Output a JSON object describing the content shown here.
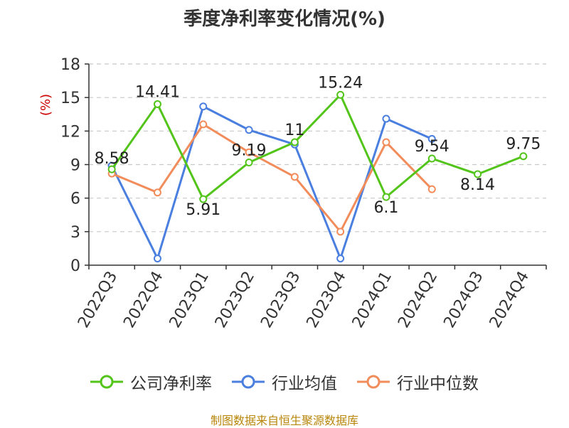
{
  "chart_data": {
    "type": "line",
    "title": "季度净利率变化情况(%)",
    "ylabel": "(%)",
    "source": "制图数据来自恒生聚源数据库",
    "categories": [
      "2022Q3",
      "2022Q4",
      "2023Q1",
      "2023Q2",
      "2023Q3",
      "2023Q4",
      "2024Q1",
      "2024Q2",
      "2024Q3",
      "2024Q4"
    ],
    "ylim": [
      0,
      18
    ],
    "yticks": [
      "0",
      "3",
      "6",
      "9",
      "12",
      "15",
      "18"
    ],
    "grid": true,
    "legend": "bottom",
    "series": [
      {
        "name": "公司净利率",
        "color": "#52c41a",
        "values": [
          8.58,
          14.41,
          5.91,
          9.19,
          11,
          15.24,
          6.1,
          9.54,
          8.14,
          9.75
        ],
        "labels": [
          "8.58",
          "14.41",
          "5.91",
          "9.19",
          "11",
          "15.24",
          "6.1",
          "9.54",
          "8.14",
          "9.75"
        ]
      },
      {
        "name": "行业均值",
        "color": "#4a7fe0",
        "values": [
          8.9,
          0.6,
          14.2,
          12.1,
          10.8,
          0.6,
          13.1,
          11.3,
          null,
          null
        ]
      },
      {
        "name": "行业中位数",
        "color": "#f28c5a",
        "values": [
          8.2,
          6.5,
          12.6,
          10.1,
          7.9,
          3.0,
          11.0,
          6.8,
          null,
          null
        ]
      }
    ]
  }
}
